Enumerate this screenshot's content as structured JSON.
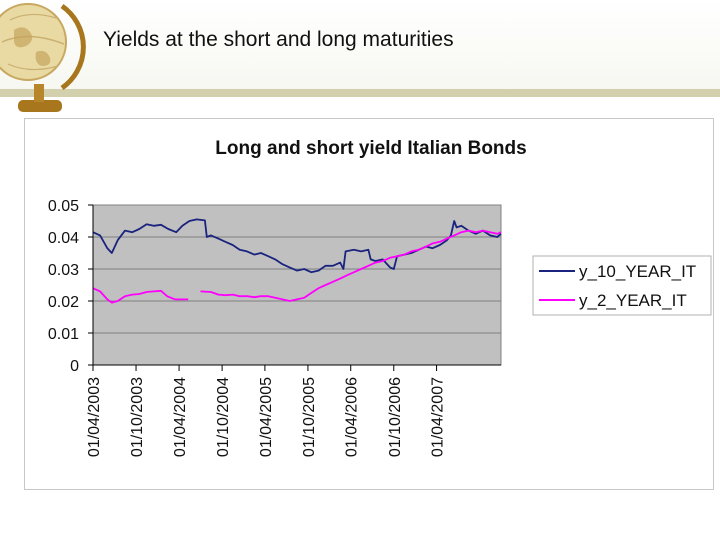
{
  "slide": {
    "title": "Yields at the short and long maturities"
  },
  "colors": {
    "plot_background": "#c0c0c0",
    "header_rule": "#d3d0ad",
    "series_10y": "#1a237e",
    "series_2y": "#ff00ff"
  },
  "chart_data": {
    "type": "line",
    "title": "Long and short yield Italian Bonds",
    "xlabel": "",
    "ylabel": "",
    "ylim": [
      0,
      0.05
    ],
    "yticks": [
      "0.05",
      "0.04",
      "0.03",
      "0.02",
      "0.01",
      "0"
    ],
    "xlim": [
      "2003-04-01",
      "2007-12-31"
    ],
    "xticks": [
      "01/04/2003",
      "01/10/2003",
      "01/04/2004",
      "01/10/2004",
      "01/04/2005",
      "01/10/2005",
      "01/04/2006",
      "01/10/2006",
      "01/04/2007"
    ],
    "grid": "horizontal",
    "legend_position": "right",
    "series": [
      {
        "name": "y_10_YEAR_IT",
        "color": "#1a237e",
        "points": [
          [
            "2003-04-01",
            0.0415
          ],
          [
            "2003-05-01",
            0.0405
          ],
          [
            "2003-06-01",
            0.0365
          ],
          [
            "2003-06-20",
            0.035
          ],
          [
            "2003-07-15",
            0.039
          ],
          [
            "2003-08-15",
            0.042
          ],
          [
            "2003-09-15",
            0.0415
          ],
          [
            "2003-10-15",
            0.0425
          ],
          [
            "2003-11-15",
            0.044
          ],
          [
            "2003-12-15",
            0.0435
          ],
          [
            "2004-01-15",
            0.0438
          ],
          [
            "2004-02-15",
            0.0425
          ],
          [
            "2004-03-20",
            0.0415
          ],
          [
            "2004-04-15",
            0.0435
          ],
          [
            "2004-05-15",
            0.045
          ],
          [
            "2004-06-15",
            0.0455
          ],
          [
            "2004-07-20",
            0.0452
          ],
          [
            "2004-07-28",
            0.04
          ],
          [
            "2004-08-15",
            0.0405
          ],
          [
            "2004-09-15",
            0.0395
          ],
          [
            "2004-10-15",
            0.0385
          ],
          [
            "2004-11-15",
            0.0375
          ],
          [
            "2004-12-15",
            0.036
          ],
          [
            "2005-01-15",
            0.0355
          ],
          [
            "2005-02-15",
            0.0345
          ],
          [
            "2005-03-15",
            0.035
          ],
          [
            "2005-04-15",
            0.034
          ],
          [
            "2005-05-15",
            0.033
          ],
          [
            "2005-06-15",
            0.0315
          ],
          [
            "2005-07-15",
            0.0305
          ],
          [
            "2005-08-15",
            0.0295
          ],
          [
            "2005-09-15",
            0.03
          ],
          [
            "2005-10-15",
            0.029
          ],
          [
            "2005-11-15",
            0.0295
          ],
          [
            "2005-12-15",
            0.031
          ],
          [
            "2006-01-15",
            0.031
          ],
          [
            "2006-02-15",
            0.032
          ],
          [
            "2006-03-01",
            0.03
          ],
          [
            "2006-03-10",
            0.0355
          ],
          [
            "2006-04-15",
            0.036
          ],
          [
            "2006-05-15",
            0.0355
          ],
          [
            "2006-06-15",
            0.036
          ],
          [
            "2006-06-25",
            0.033
          ],
          [
            "2006-07-15",
            0.0325
          ],
          [
            "2006-08-15",
            0.033
          ],
          [
            "2006-09-15",
            0.0305
          ],
          [
            "2006-10-01",
            0.03
          ],
          [
            "2006-10-15",
            0.034
          ],
          [
            "2006-11-15",
            0.0345
          ],
          [
            "2006-12-15",
            0.035
          ],
          [
            "2007-01-15",
            0.036
          ],
          [
            "2007-02-15",
            0.037
          ],
          [
            "2007-03-15",
            0.0365
          ],
          [
            "2007-04-15",
            0.0375
          ],
          [
            "2007-05-15",
            0.039
          ],
          [
            "2007-06-01",
            0.0405
          ],
          [
            "2007-06-15",
            0.045
          ],
          [
            "2007-06-25",
            0.043
          ],
          [
            "2007-07-15",
            0.0435
          ],
          [
            "2007-08-15",
            0.042
          ],
          [
            "2007-09-15",
            0.041
          ],
          [
            "2007-10-15",
            0.042
          ],
          [
            "2007-11-15",
            0.0405
          ],
          [
            "2007-12-15",
            0.04
          ],
          [
            "2007-12-31",
            0.041
          ]
        ]
      },
      {
        "name": "y_2_YEAR_IT",
        "color": "#ff00ff",
        "points": [
          [
            "2003-04-01",
            0.024
          ],
          [
            "2003-05-01",
            0.023
          ],
          [
            "2003-06-01",
            0.0205
          ],
          [
            "2003-06-20",
            0.0195
          ],
          [
            "2003-07-15",
            0.02
          ],
          [
            "2003-08-15",
            0.0215
          ],
          [
            "2003-09-15",
            0.022
          ],
          [
            "2003-10-15",
            0.0222
          ],
          [
            "2003-11-15",
            0.0228
          ],
          [
            "2003-12-15",
            0.023
          ],
          [
            "2004-01-15",
            0.0232
          ],
          [
            "2004-02-10",
            0.0215
          ],
          [
            "2004-03-15",
            0.0205
          ],
          [
            "2004-04-15",
            0.0205
          ],
          [
            "2004-05-10",
            0.0205
          ],
          null,
          [
            "2004-07-01",
            0.023
          ],
          [
            "2004-08-15",
            0.0228
          ],
          [
            "2004-09-15",
            0.022
          ],
          [
            "2004-10-15",
            0.0218
          ],
          [
            "2004-11-15",
            0.022
          ],
          [
            "2004-12-15",
            0.0215
          ],
          [
            "2005-01-15",
            0.0215
          ],
          [
            "2005-02-15",
            0.0212
          ],
          [
            "2005-03-15",
            0.0215
          ],
          [
            "2005-04-15",
            0.0215
          ],
          [
            "2005-05-15",
            0.021
          ],
          [
            "2005-06-15",
            0.0205
          ],
          [
            "2005-07-15",
            0.02
          ],
          [
            "2005-08-15",
            0.0205
          ],
          [
            "2005-09-15",
            0.021
          ],
          [
            "2005-10-15",
            0.0225
          ],
          [
            "2005-11-15",
            0.024
          ],
          [
            "2005-12-15",
            0.025
          ],
          [
            "2006-01-15",
            0.026
          ],
          [
            "2006-02-15",
            0.027
          ],
          [
            "2006-03-15",
            0.028
          ],
          [
            "2006-04-15",
            0.029
          ],
          [
            "2006-05-15",
            0.03
          ],
          [
            "2006-06-15",
            0.031
          ],
          [
            "2006-07-15",
            0.032
          ],
          [
            "2006-08-15",
            0.0325
          ],
          [
            "2006-09-15",
            0.0335
          ],
          [
            "2006-10-15",
            0.034
          ],
          [
            "2006-11-15",
            0.0345
          ],
          [
            "2006-12-15",
            0.0355
          ],
          [
            "2007-01-15",
            0.036
          ],
          [
            "2007-02-15",
            0.037
          ],
          [
            "2007-03-15",
            0.038
          ],
          [
            "2007-04-15",
            0.0385
          ],
          [
            "2007-05-15",
            0.0395
          ],
          [
            "2007-06-15",
            0.0405
          ],
          [
            "2007-07-15",
            0.0415
          ],
          [
            "2007-08-15",
            0.042
          ],
          [
            "2007-09-15",
            0.0415
          ],
          [
            "2007-10-15",
            0.042
          ],
          [
            "2007-11-15",
            0.0415
          ],
          [
            "2007-12-15",
            0.041
          ],
          [
            "2007-12-31",
            0.0415
          ]
        ]
      }
    ]
  }
}
